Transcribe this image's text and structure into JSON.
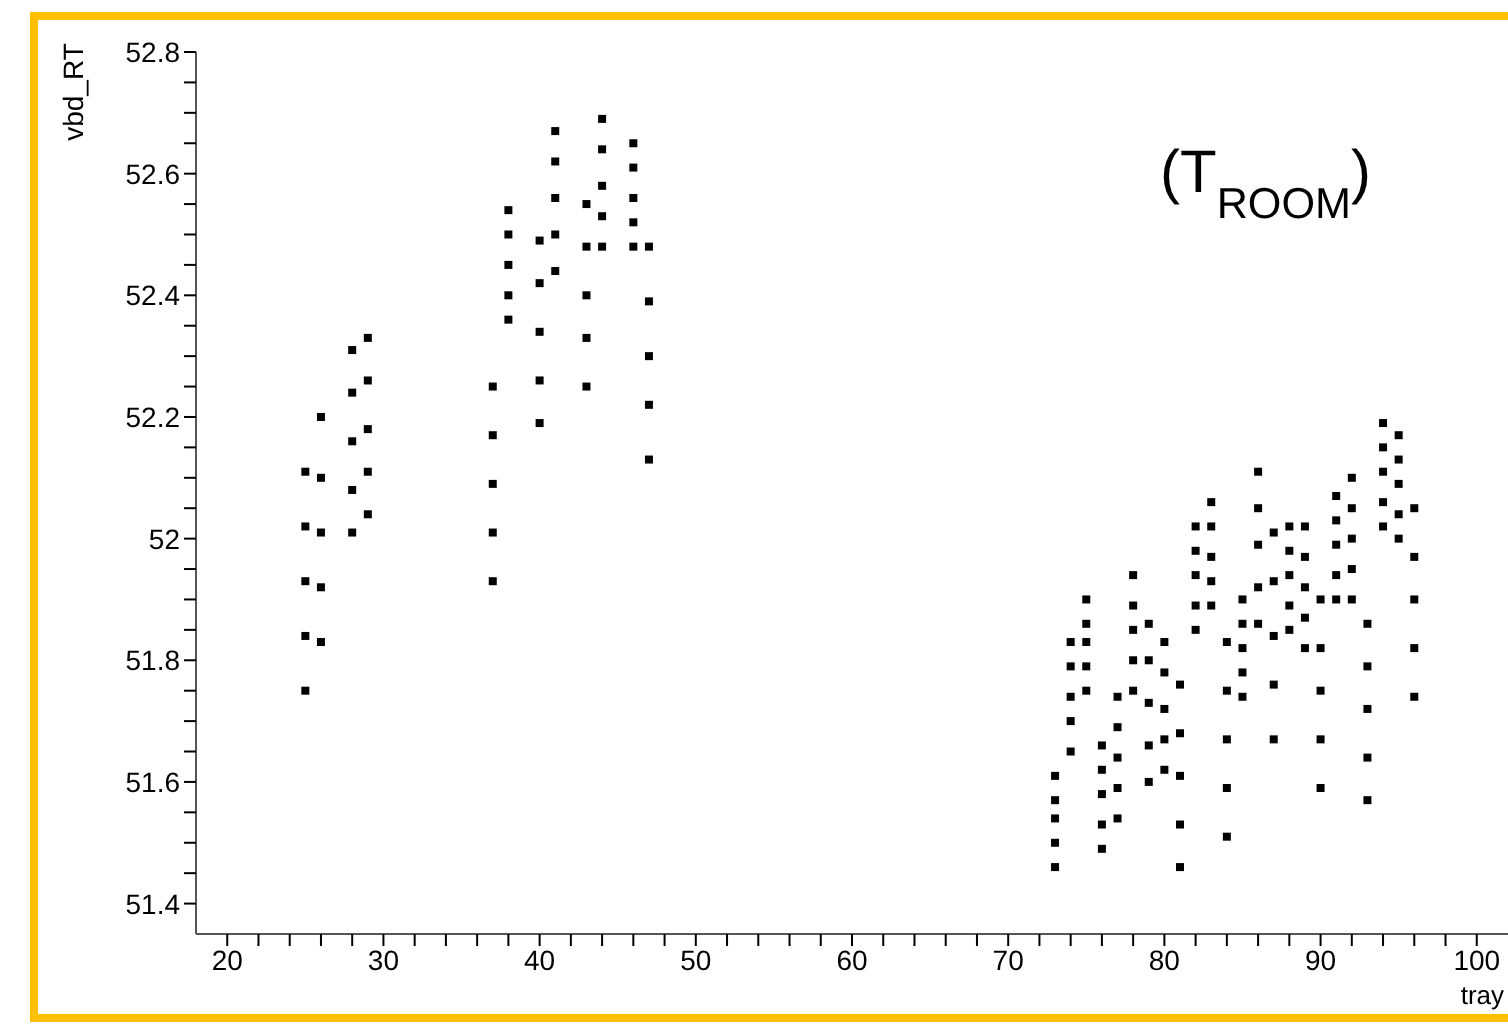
{
  "chart_data": {
    "type": "scatter",
    "xlabel": "tray",
    "ylabel": "vbd_RT",
    "annotations": [
      "(T$_{ROOM}$)"
    ],
    "marker": "square",
    "xlim": [
      18,
      102
    ],
    "ylim": [
      51.35,
      52.8
    ],
    "xticks": [
      20,
      {
        "value": 22,
        "label": null
      },
      {
        "value": 24,
        "label": null
      },
      {
        "value": 26,
        "label": null
      },
      {
        "value": 28,
        "label": null
      },
      30,
      {
        "value": 32,
        "label": null
      },
      {
        "value": 34,
        "label": null
      },
      {
        "value": 36,
        "label": null
      },
      {
        "value": 38,
        "label": null
      },
      40,
      {
        "value": 42,
        "label": null
      },
      {
        "value": 44,
        "label": null
      },
      {
        "value": 46,
        "label": null
      },
      {
        "value": 48,
        "label": null
      },
      50,
      {
        "value": 52,
        "label": null
      },
      {
        "value": 54,
        "label": null
      },
      {
        "value": 56,
        "label": null
      },
      {
        "value": 58,
        "label": null
      },
      60,
      {
        "value": 62,
        "label": null
      },
      {
        "value": 64,
        "label": null
      },
      {
        "value": 66,
        "label": null
      },
      {
        "value": 68,
        "label": null
      },
      70,
      {
        "value": 72,
        "label": null
      },
      {
        "value": 74,
        "label": null
      },
      {
        "value": 76,
        "label": null
      },
      {
        "value": 78,
        "label": null
      },
      80,
      {
        "value": 82,
        "label": null
      },
      {
        "value": 84,
        "label": null
      },
      {
        "value": 86,
        "label": null
      },
      {
        "value": 88,
        "label": null
      },
      90,
      {
        "value": 92,
        "label": null
      },
      {
        "value": 94,
        "label": null
      },
      {
        "value": 96,
        "label": null
      },
      {
        "value": 98,
        "label": null
      },
      100
    ],
    "yticks": [
      51.4,
      {
        "value": 51.45,
        "label": null
      },
      {
        "value": 51.5,
        "label": null
      },
      {
        "value": 51.55,
        "label": null
      },
      51.6,
      {
        "value": 51.65,
        "label": null
      },
      {
        "value": 51.7,
        "label": null
      },
      {
        "value": 51.75,
        "label": null
      },
      51.8,
      {
        "value": 51.85,
        "label": null
      },
      {
        "value": 51.9,
        "label": null
      },
      {
        "value": 51.95,
        "label": null
      },
      52,
      {
        "value": 52.05,
        "label": null
      },
      {
        "value": 52.1,
        "label": null
      },
      {
        "value": 52.15,
        "label": null
      },
      52.2,
      {
        "value": 52.25,
        "label": null
      },
      {
        "value": 52.3,
        "label": null
      },
      {
        "value": 52.35,
        "label": null
      },
      52.4,
      {
        "value": 52.45,
        "label": null
      },
      {
        "value": 52.5,
        "label": null
      },
      {
        "value": 52.55,
        "label": null
      },
      52.6,
      {
        "value": 52.65,
        "label": null
      },
      {
        "value": 52.7,
        "label": null
      },
      {
        "value": 52.75,
        "label": null
      },
      52.8
    ],
    "series": [
      {
        "color": "#000000",
        "x": [
          25,
          25,
          25,
          25,
          25
        ],
        "values": [
          51.75,
          51.84,
          51.93,
          52.02,
          52.11
        ]
      },
      {
        "color": "#000000",
        "x": [
          26,
          26,
          26,
          26,
          26
        ],
        "values": [
          51.83,
          51.92,
          52.01,
          52.1,
          52.2
        ]
      },
      {
        "color": "#000000",
        "x": [
          28,
          28,
          28,
          28,
          28
        ],
        "values": [
          52.01,
          52.08,
          52.16,
          52.24,
          52.31
        ]
      },
      {
        "color": "#000000",
        "x": [
          29,
          29,
          29,
          29,
          29
        ],
        "values": [
          52.04,
          52.11,
          52.18,
          52.26,
          52.33
        ]
      },
      {
        "color": "#000000",
        "x": [
          37,
          37,
          37,
          37,
          37
        ],
        "values": [
          51.93,
          52.01,
          52.09,
          52.17,
          52.25
        ]
      },
      {
        "color": "#000000",
        "x": [
          38,
          38,
          38,
          38,
          38
        ],
        "values": [
          52.36,
          52.4,
          52.45,
          52.5,
          52.54
        ]
      },
      {
        "color": "#000000",
        "x": [
          40,
          40,
          40,
          40,
          40
        ],
        "values": [
          52.19,
          52.26,
          52.34,
          52.42,
          52.49
        ]
      },
      {
        "color": "#000000",
        "x": [
          41,
          41,
          41,
          41,
          41
        ],
        "values": [
          52.44,
          52.5,
          52.56,
          52.62,
          52.67
        ]
      },
      {
        "color": "#000000",
        "x": [
          43,
          43,
          43,
          43,
          43
        ],
        "values": [
          52.25,
          52.33,
          52.4,
          52.48,
          52.55
        ]
      },
      {
        "color": "#000000",
        "x": [
          44,
          44,
          44,
          44,
          44
        ],
        "values": [
          52.48,
          52.53,
          52.58,
          52.64,
          52.69
        ]
      },
      {
        "color": "#000000",
        "x": [
          46,
          46,
          46,
          46,
          46
        ],
        "values": [
          52.48,
          52.52,
          52.56,
          52.61,
          52.65
        ]
      },
      {
        "color": "#000000",
        "x": [
          47,
          47,
          47,
          47,
          47
        ],
        "values": [
          52.13,
          52.22,
          52.3,
          52.39,
          52.48
        ]
      },
      {
        "color": "#000000",
        "x": [
          73,
          73,
          73,
          73,
          73
        ],
        "values": [
          51.46,
          51.5,
          51.54,
          51.57,
          51.61
        ]
      },
      {
        "color": "#000000",
        "x": [
          74,
          74,
          74,
          74,
          74
        ],
        "values": [
          51.65,
          51.7,
          51.74,
          51.79,
          51.83
        ]
      },
      {
        "color": "#000000",
        "x": [
          75,
          75,
          75,
          75,
          75
        ],
        "values": [
          51.75,
          51.79,
          51.83,
          51.86,
          51.9
        ]
      },
      {
        "color": "#000000",
        "x": [
          76,
          76,
          76,
          76,
          76
        ],
        "values": [
          51.49,
          51.53,
          51.58,
          51.62,
          51.66
        ]
      },
      {
        "color": "#000000",
        "x": [
          77,
          77,
          77,
          77,
          77
        ],
        "values": [
          51.54,
          51.59,
          51.64,
          51.69,
          51.74
        ]
      },
      {
        "color": "#000000",
        "x": [
          78,
          78,
          78,
          78,
          78
        ],
        "values": [
          51.75,
          51.8,
          51.85,
          51.89,
          51.94
        ]
      },
      {
        "color": "#000000",
        "x": [
          79,
          79,
          79,
          79,
          79
        ],
        "values": [
          51.6,
          51.66,
          51.73,
          51.8,
          51.86
        ]
      },
      {
        "color": "#000000",
        "x": [
          80,
          80,
          80,
          80,
          80
        ],
        "values": [
          51.62,
          51.67,
          51.72,
          51.78,
          51.83
        ]
      },
      {
        "color": "#000000",
        "x": [
          81,
          81,
          81,
          81,
          81
        ],
        "values": [
          51.46,
          51.53,
          51.61,
          51.68,
          51.76
        ]
      },
      {
        "color": "#000000",
        "x": [
          82,
          82,
          82,
          82,
          82
        ],
        "values": [
          51.85,
          51.89,
          51.94,
          51.98,
          52.02
        ]
      },
      {
        "color": "#000000",
        "x": [
          83,
          83,
          83,
          83,
          83
        ],
        "values": [
          51.89,
          51.93,
          51.97,
          52.02,
          52.06
        ]
      },
      {
        "color": "#000000",
        "x": [
          84,
          84,
          84,
          84,
          84
        ],
        "values": [
          51.51,
          51.59,
          51.67,
          51.75,
          51.83
        ]
      },
      {
        "color": "#000000",
        "x": [
          85,
          85,
          85,
          85,
          85
        ],
        "values": [
          51.74,
          51.78,
          51.82,
          51.86,
          51.9
        ]
      },
      {
        "color": "#000000",
        "x": [
          86,
          86,
          86,
          86,
          86
        ],
        "values": [
          51.86,
          51.92,
          51.99,
          52.05,
          52.11
        ]
      },
      {
        "color": "#000000",
        "x": [
          87,
          87,
          87,
          87,
          87
        ],
        "values": [
          51.67,
          51.76,
          51.84,
          51.93,
          52.01
        ]
      },
      {
        "color": "#000000",
        "x": [
          88,
          88,
          88,
          88,
          88
        ],
        "values": [
          51.85,
          51.89,
          51.94,
          51.98,
          52.02
        ]
      },
      {
        "color": "#000000",
        "x": [
          89,
          89,
          89,
          89,
          89
        ],
        "values": [
          51.82,
          51.87,
          51.92,
          51.97,
          52.02
        ]
      },
      {
        "color": "#000000",
        "x": [
          90,
          90,
          90,
          90,
          90
        ],
        "values": [
          51.59,
          51.67,
          51.75,
          51.82,
          51.9
        ]
      },
      {
        "color": "#000000",
        "x": [
          91,
          91,
          91,
          91,
          91
        ],
        "values": [
          51.9,
          51.94,
          51.99,
          52.03,
          52.07
        ]
      },
      {
        "color": "#000000",
        "x": [
          92,
          92,
          92,
          92,
          92
        ],
        "values": [
          51.9,
          51.95,
          52.0,
          52.05,
          52.1
        ]
      },
      {
        "color": "#000000",
        "x": [
          93,
          93,
          93,
          93,
          93
        ],
        "values": [
          51.57,
          51.64,
          51.72,
          51.79,
          51.86
        ]
      },
      {
        "color": "#000000",
        "x": [
          94,
          94,
          94,
          94,
          94
        ],
        "values": [
          52.02,
          52.06,
          52.11,
          52.15,
          52.19
        ]
      },
      {
        "color": "#000000",
        "x": [
          95,
          95,
          95,
          95,
          95
        ],
        "values": [
          52.0,
          52.04,
          52.09,
          52.13,
          52.17
        ]
      },
      {
        "color": "#000000",
        "x": [
          96,
          96,
          96,
          96,
          96
        ],
        "values": [
          51.74,
          51.82,
          51.9,
          51.97,
          52.05
        ]
      }
    ]
  }
}
